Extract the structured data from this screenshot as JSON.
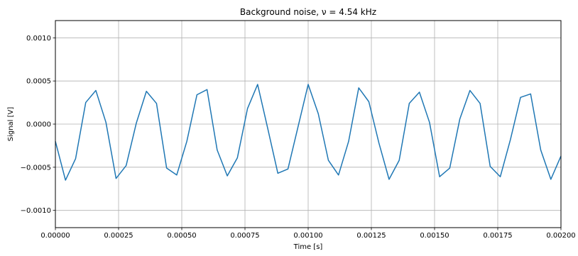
{
  "chart_data": {
    "type": "line",
    "title": "Background noise, ν = 4.54 kHz",
    "xlabel": "Time [s]",
    "ylabel": "Signal [V]",
    "xlim": [
      0.0,
      0.002
    ],
    "ylim": [
      -0.0012,
      0.0012
    ],
    "grid": true,
    "x_ticks": [
      {
        "value": 0.0,
        "label": "0.00000"
      },
      {
        "value": 0.00025,
        "label": "0.00025"
      },
      {
        "value": 0.0005,
        "label": "0.00050"
      },
      {
        "value": 0.00075,
        "label": "0.00075"
      },
      {
        "value": 0.001,
        "label": "0.00100"
      },
      {
        "value": 0.00125,
        "label": "0.00125"
      },
      {
        "value": 0.0015,
        "label": "0.00150"
      },
      {
        "value": 0.00175,
        "label": "0.00175"
      },
      {
        "value": 0.002,
        "label": "0.00200"
      }
    ],
    "y_ticks": [
      {
        "value": -0.001,
        "label": "−0.0010"
      },
      {
        "value": -0.0005,
        "label": "−0.0005"
      },
      {
        "value": 0.0,
        "label": "0.0000"
      },
      {
        "value": 0.0005,
        "label": "0.0005"
      },
      {
        "value": 0.001,
        "label": "0.0010"
      }
    ],
    "series": [
      {
        "color": "#1f77b4",
        "x": [
          0.0,
          4e-05,
          8e-05,
          0.00012,
          0.00016,
          0.0002,
          0.00024,
          0.00028,
          0.00032,
          0.00036,
          0.0004,
          0.00044,
          0.00048,
          0.00052,
          0.00056,
          0.0006,
          0.00064,
          0.00068,
          0.00072,
          0.00076,
          0.0008,
          0.00084,
          0.00088,
          0.00092,
          0.00096,
          0.001,
          0.00104,
          0.00108,
          0.00112,
          0.00116,
          0.0012,
          0.00124,
          0.00128,
          0.00132,
          0.00136,
          0.0014,
          0.00144,
          0.00148,
          0.00152,
          0.00156,
          0.0016,
          0.00164,
          0.00168,
          0.00172,
          0.00176,
          0.0018,
          0.00184,
          0.00188,
          0.00192,
          0.00196,
          0.002
        ],
        "y": [
          -0.0002,
          -0.00065,
          -0.0004,
          0.00025,
          0.00039,
          2e-05,
          -0.00063,
          -0.00048,
          1e-05,
          0.00038,
          0.00024,
          -0.00051,
          -0.00059,
          -0.0002,
          0.00034,
          0.0004,
          -0.0003,
          -0.0006,
          -0.00039,
          0.00018,
          0.00046,
          -5e-05,
          -0.00057,
          -0.00052,
          -3e-05,
          0.00046,
          0.00012,
          -0.00042,
          -0.00059,
          -0.0002,
          0.00042,
          0.00026,
          -0.00022,
          -0.00064,
          -0.00042,
          0.00024,
          0.00037,
          2e-05,
          -0.00061,
          -0.00051,
          6e-05,
          0.00039,
          0.00024,
          -0.00049,
          -0.00061,
          -0.00018,
          0.00031,
          0.00035,
          -0.0003,
          -0.00064,
          -0.00037
        ]
      }
    ]
  }
}
